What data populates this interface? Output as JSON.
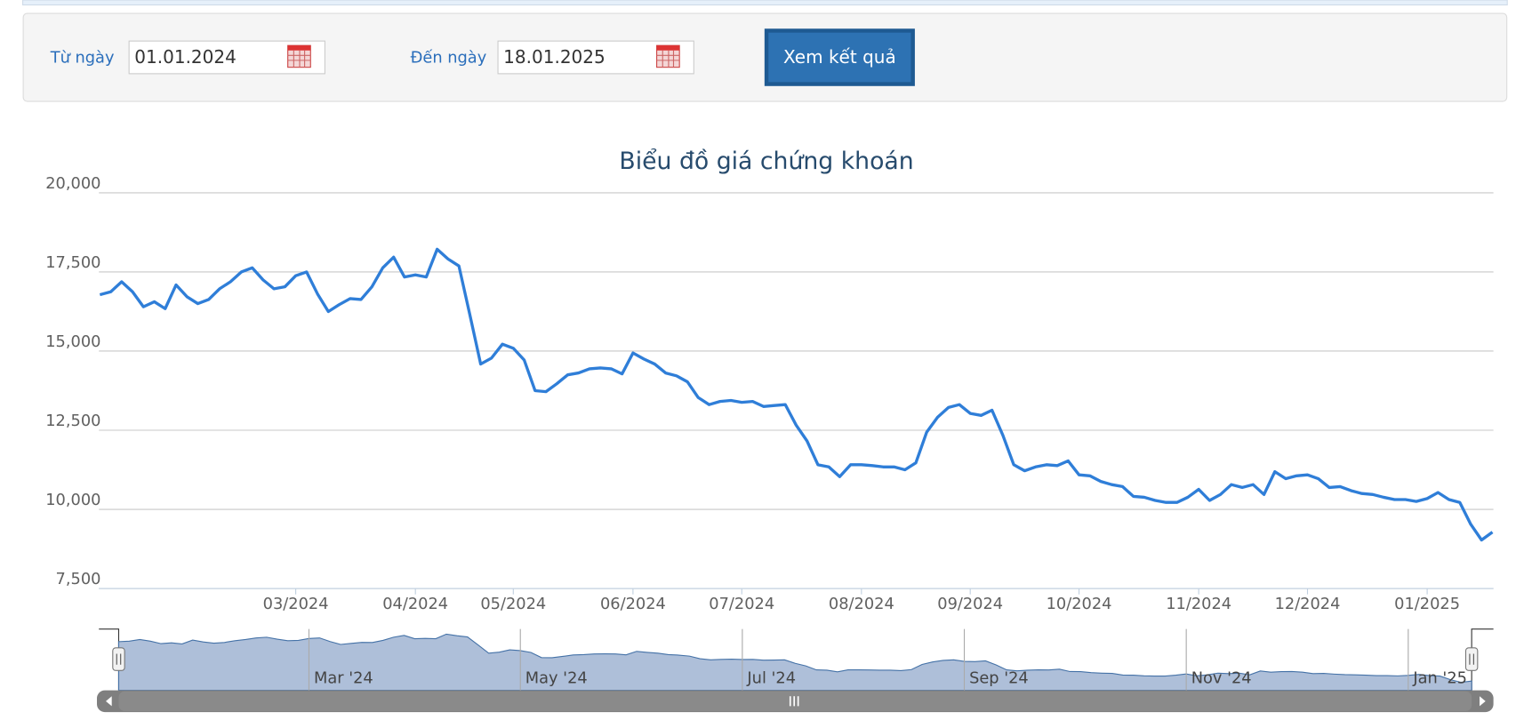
{
  "form": {
    "from_label": "Từ ngày",
    "from_value": "01.01.2024",
    "to_label": "Đến ngày",
    "to_value": "18.01.2025",
    "button": "Xem kết quả"
  },
  "chart_data": {
    "type": "line",
    "title": "Biểu đồ giá chứng khoán",
    "categories": [
      null,
      null,
      null,
      null,
      null,
      null,
      null,
      null,
      null,
      null,
      null,
      null,
      null,
      null,
      null,
      null,
      null,
      null,
      "03/2024",
      null,
      null,
      null,
      null,
      null,
      null,
      null,
      null,
      null,
      null,
      "04/2024",
      null,
      null,
      null,
      null,
      null,
      null,
      null,
      null,
      "05/2024",
      null,
      null,
      null,
      null,
      null,
      null,
      null,
      null,
      null,
      null,
      "06/2024",
      null,
      null,
      null,
      null,
      null,
      null,
      null,
      null,
      null,
      "07/2024",
      null,
      null,
      null,
      null,
      null,
      null,
      null,
      null,
      null,
      null,
      "08/2024",
      null,
      null,
      null,
      null,
      null,
      null,
      null,
      null,
      null,
      "09/2024",
      null,
      null,
      null,
      null,
      null,
      null,
      null,
      null,
      null,
      "10/2024",
      null,
      null,
      null,
      null,
      null,
      null,
      null,
      null,
      null,
      null,
      "11/2024",
      null,
      null,
      null,
      null,
      null,
      null,
      null,
      null,
      null,
      "12/2024",
      null,
      null,
      null,
      null,
      null,
      null,
      null,
      null,
      null,
      null,
      "01/2025",
      null,
      null,
      null,
      null,
      null,
      null
    ],
    "series": [
      {
        "color": "#2f7ed8",
        "values": [
          16780,
          16875,
          17190,
          16875,
          16400,
          16560,
          16340,
          17090,
          16720,
          16500,
          16630,
          16970,
          17190,
          17500,
          17630,
          17250,
          16970,
          17030,
          17380,
          17500,
          16810,
          16250,
          16470,
          16660,
          16630,
          17030,
          17630,
          17970,
          17340,
          17410,
          17340,
          18220,
          17910,
          17690,
          16160,
          14590,
          14780,
          15220,
          15090,
          14720,
          13750,
          13720,
          13970,
          14250,
          14310,
          14440,
          14470,
          14440,
          14280,
          14940,
          14750,
          14590,
          14310,
          14220,
          14030,
          13530,
          13310,
          13410,
          13440,
          13380,
          13410,
          13250,
          13280,
          13310,
          12660,
          12160,
          11410,
          11340,
          11030,
          11410,
          11410,
          11380,
          11340,
          11340,
          11250,
          11470,
          12440,
          12910,
          13220,
          13310,
          13030,
          12970,
          13130,
          12340,
          11410,
          11220,
          11340,
          11410,
          11380,
          11530,
          11090,
          11060,
          10880,
          10780,
          10720,
          10410,
          10380,
          10280,
          10220,
          10220,
          10380,
          10630,
          10280,
          10470,
          10780,
          10690,
          10780,
          10470,
          11190,
          10970,
          11060,
          11090,
          10970,
          10690,
          10720,
          10590,
          10500,
          10470,
          10380,
          10310,
          10310,
          10250,
          10340,
          10530,
          10310,
          10220,
          9530,
          9030,
          9280
        ]
      }
    ],
    "ylim": [
      7500,
      20000
    ],
    "yticks": [
      {
        "value": 7500,
        "label": "7,500"
      },
      {
        "value": 10000,
        "label": "10,000"
      },
      {
        "value": 12500,
        "label": "12,500"
      },
      {
        "value": 15000,
        "label": "15,000"
      },
      {
        "value": 17500,
        "label": "17,500"
      },
      {
        "value": 20000,
        "label": "20,000"
      }
    ],
    "grid": true,
    "navigator": {
      "labels": [
        "Mar '24",
        "May '24",
        "Jul '24",
        "Sep '24",
        "Nov '24",
        "Jan '25"
      ],
      "color": "#aebfd9"
    }
  }
}
